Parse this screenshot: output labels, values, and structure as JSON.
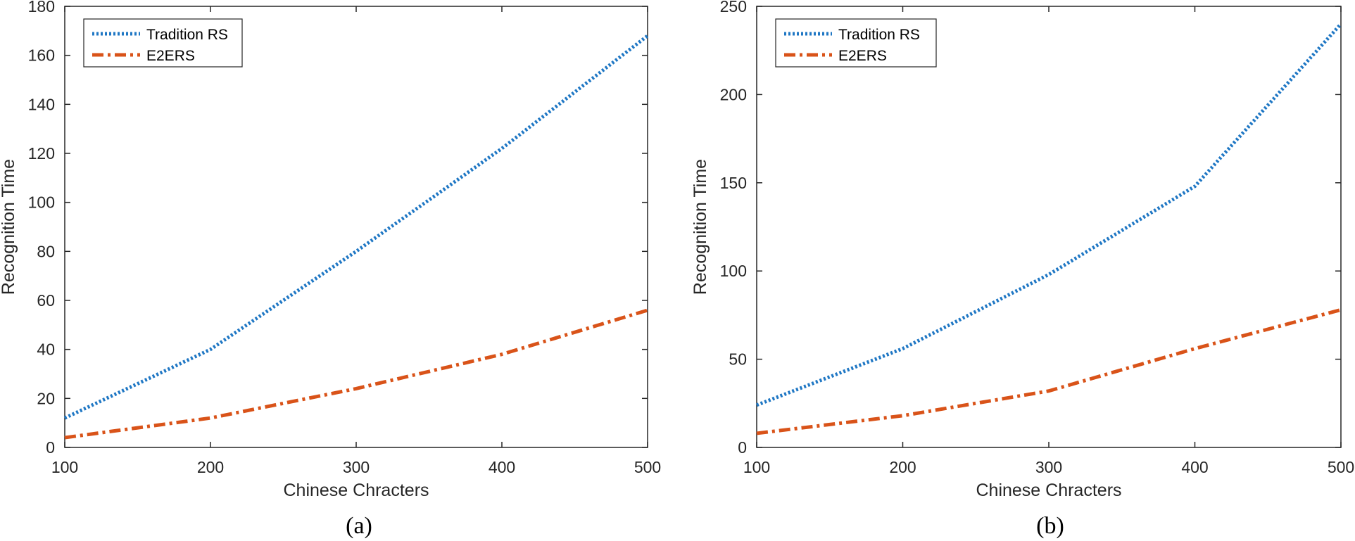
{
  "chart_data": [
    {
      "type": "line",
      "panel": "(a)",
      "xlabel": "Chinese Chracters",
      "ylabel": "Recognition Time",
      "xlim": [
        100,
        500
      ],
      "ylim": [
        0,
        180
      ],
      "xticks": [
        100,
        200,
        300,
        400,
        500
      ],
      "yticks": [
        0,
        20,
        40,
        60,
        80,
        100,
        120,
        140,
        160,
        180
      ],
      "x": [
        100,
        200,
        300,
        400,
        500
      ],
      "legend_position": "top-left",
      "grid": false,
      "series": [
        {
          "name": "Tradition RS",
          "values": [
            12,
            40,
            80,
            122,
            168
          ],
          "color": "#1f77c4",
          "style": "dotted"
        },
        {
          "name": "E2ERS",
          "values": [
            4,
            12,
            24,
            38,
            56
          ],
          "color": "#d95319",
          "style": "dashdot"
        }
      ]
    },
    {
      "type": "line",
      "panel": "(b)",
      "xlabel": "Chinese Chracters",
      "ylabel": "Recognition Time",
      "xlim": [
        100,
        500
      ],
      "ylim": [
        0,
        250
      ],
      "xticks": [
        100,
        200,
        300,
        400,
        500
      ],
      "yticks": [
        0,
        50,
        100,
        150,
        200,
        250
      ],
      "x": [
        100,
        200,
        300,
        400,
        500
      ],
      "legend_position": "top-left",
      "grid": false,
      "series": [
        {
          "name": "Tradition RS",
          "values": [
            24,
            56,
            98,
            148,
            240
          ],
          "color": "#1f77c4",
          "style": "dotted"
        },
        {
          "name": "E2ERS",
          "values": [
            8,
            18,
            32,
            56,
            78
          ],
          "color": "#d95319",
          "style": "dashdot"
        }
      ]
    }
  ]
}
